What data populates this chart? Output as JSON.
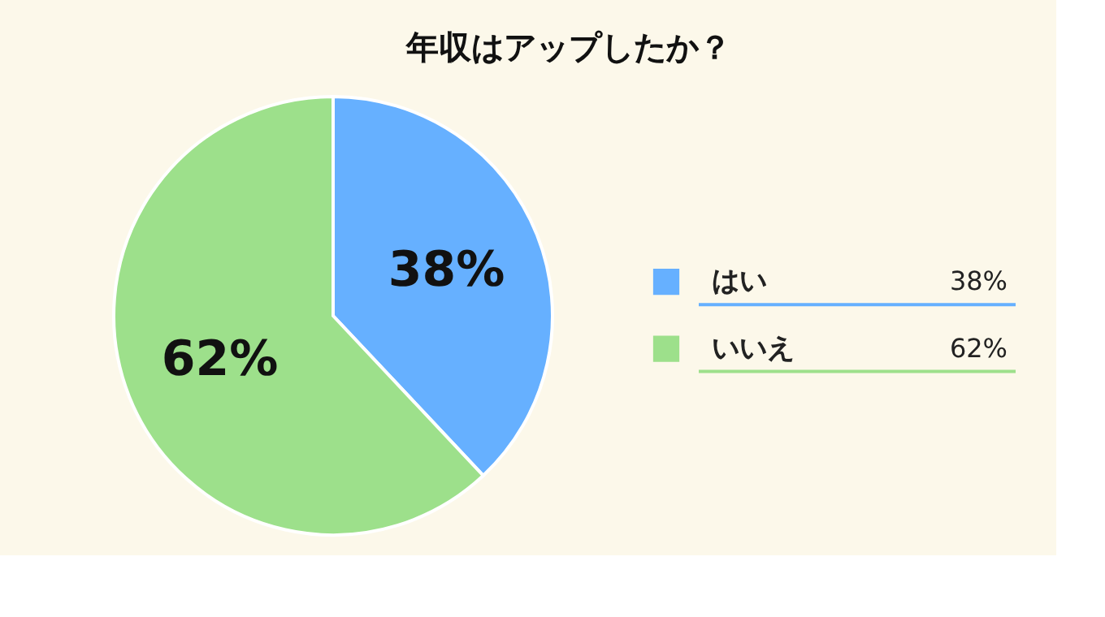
{
  "chart_data": {
    "type": "pie",
    "title": "年収はアップしたか？",
    "categories": [
      "はい",
      "いいえ"
    ],
    "values": [
      38,
      62
    ],
    "colors": [
      "#66b0ff",
      "#9de08b"
    ],
    "value_labels": [
      "38%",
      "62%"
    ],
    "legend": "right"
  }
}
